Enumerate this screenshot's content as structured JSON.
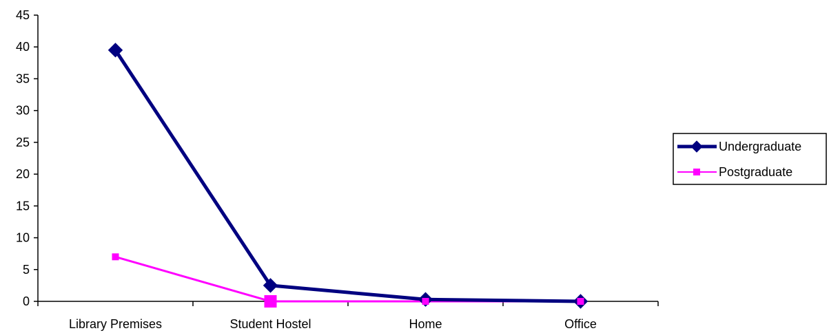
{
  "chart_data": {
    "type": "line",
    "categories": [
      "Library Premises",
      "Student Hostel",
      "Home",
      "Office"
    ],
    "ylim": [
      0,
      45
    ],
    "yticks": [
      0,
      5,
      10,
      15,
      20,
      25,
      30,
      35,
      40,
      45
    ],
    "grid": false,
    "legend": "right",
    "series": [
      {
        "name": "Undergraduate",
        "values": [
          39.5,
          2.5,
          0.3,
          0
        ],
        "color": "#000080",
        "marker": "diamond"
      },
      {
        "name": "Postgraduate",
        "values": [
          7,
          0,
          0,
          0
        ],
        "color": "#FF00FF",
        "marker": "square"
      }
    ]
  }
}
